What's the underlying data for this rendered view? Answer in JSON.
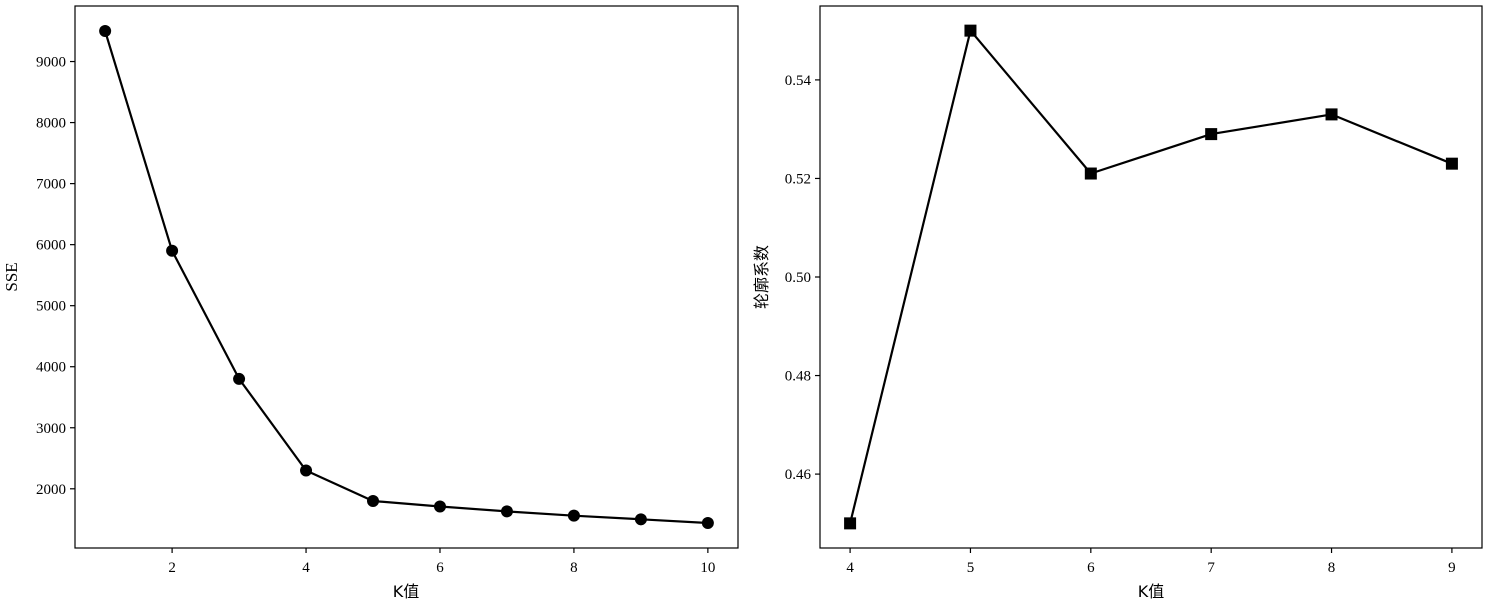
{
  "colors": {
    "line": "#000000",
    "marker": "#000000",
    "background": "#ffffff"
  },
  "chart_data": [
    {
      "type": "line",
      "marker": "circle",
      "xlabel": "K值",
      "ylabel": "SSE",
      "x": [
        1,
        2,
        3,
        4,
        5,
        6,
        7,
        8,
        9,
        10
      ],
      "y": [
        9500,
        5900,
        3800,
        2300,
        1800,
        1710,
        1630,
        1560,
        1500,
        1440
      ],
      "xticks": [
        "2",
        "4",
        "6",
        "8",
        "10"
      ],
      "yticks": [
        "2000",
        "3000",
        "4000",
        "5000",
        "6000",
        "7000",
        "8000",
        "9000"
      ],
      "xlim": [
        0.55,
        10.45
      ],
      "ylim": [
        1030,
        9910
      ],
      "grid": false
    },
    {
      "type": "line",
      "marker": "square",
      "xlabel": "K值",
      "ylabel": "轮廓系数",
      "x": [
        4,
        5,
        6,
        7,
        8,
        9
      ],
      "y": [
        0.45,
        0.55,
        0.521,
        0.529,
        0.533,
        0.523
      ],
      "xticks": [
        "4",
        "5",
        "6",
        "7",
        "8",
        "9"
      ],
      "yticks": [
        "0.46",
        "0.48",
        "0.50",
        "0.52",
        "0.54"
      ],
      "xlim": [
        3.75,
        9.25
      ],
      "ylim": [
        0.445,
        0.555
      ],
      "grid": false
    }
  ]
}
